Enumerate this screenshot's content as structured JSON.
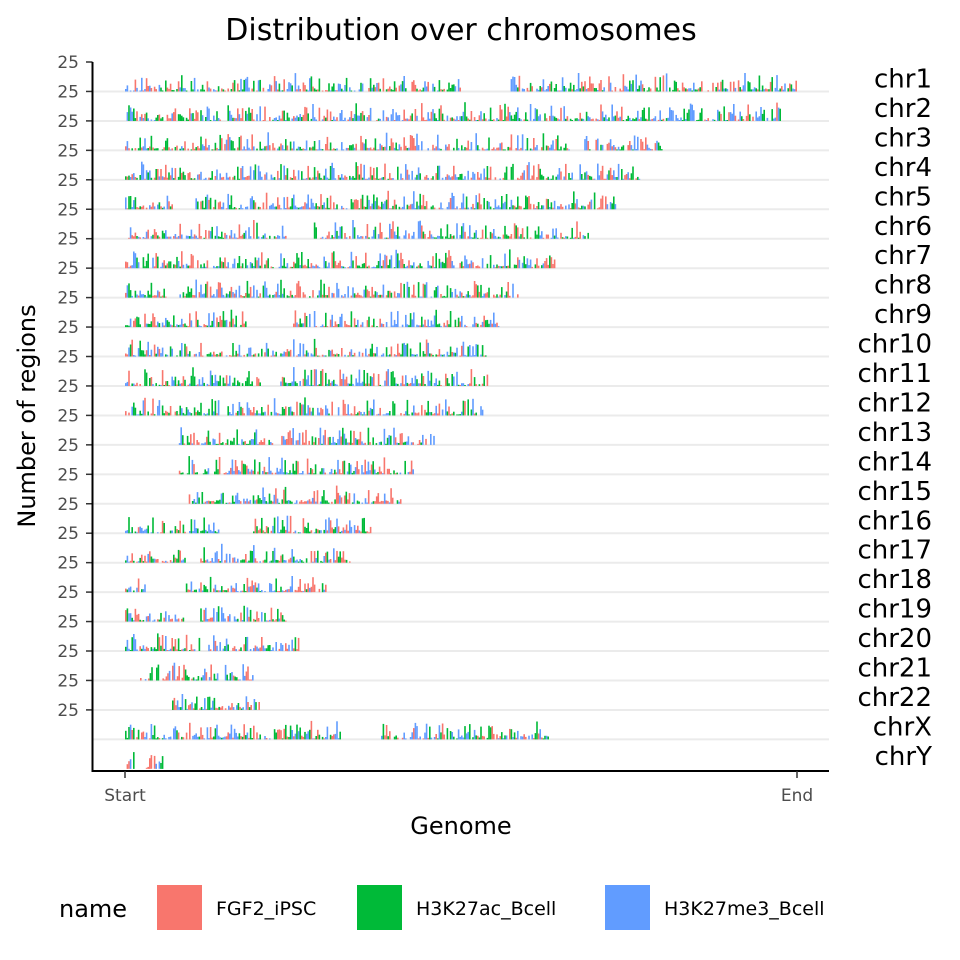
{
  "chart_data": {
    "type": "bar",
    "title": "Distribution over chromosomes",
    "xlabel": "Genome",
    "ylabel": "Number of regions",
    "x_ticks": [
      "Start",
      "End"
    ],
    "y_tick": "25",
    "ylim": [
      0,
      25
    ],
    "grid": "horizontal baselines only",
    "legend": {
      "title": "name",
      "position": "bottom",
      "entries": [
        {
          "name": "FGF2_iPSC",
          "color": "#F8766D"
        },
        {
          "name": "H3K27ac_Bcell",
          "color": "#00BA38"
        },
        {
          "name": "H3K27me3_Bcell",
          "color": "#619CFF"
        }
      ]
    },
    "chromosomes": [
      {
        "name": "chr1",
        "span": [
          0.0,
          1.0
        ],
        "gaps": [
          [
            0.5,
            0.57
          ]
        ]
      },
      {
        "name": "chr2",
        "span": [
          0.0,
          0.975
        ],
        "gaps": []
      },
      {
        "name": "chr3",
        "span": [
          0.0,
          0.8
        ],
        "gaps": [
          [
            0.66,
            0.68
          ]
        ]
      },
      {
        "name": "chr4",
        "span": [
          0.0,
          0.765
        ],
        "gaps": [
          [
            0.17,
            0.15
          ]
        ]
      },
      {
        "name": "chr5",
        "span": [
          0.0,
          0.73
        ],
        "gaps": [
          [
            0.07,
            0.1
          ]
        ]
      },
      {
        "name": "chr6",
        "span": [
          0.0,
          0.69
        ],
        "gaps": [
          [
            0.24,
            0.28
          ]
        ]
      },
      {
        "name": "chr7",
        "span": [
          0.0,
          0.64
        ],
        "gaps": [
          [
            0.09,
            0.07
          ]
        ]
      },
      {
        "name": "chr8",
        "span": [
          0.0,
          0.585
        ],
        "gaps": [
          [
            0.06,
            0.08
          ]
        ]
      },
      {
        "name": "chr9",
        "span": [
          0.0,
          0.555
        ],
        "gaps": [
          [
            0.18,
            0.25
          ]
        ]
      },
      {
        "name": "chr10",
        "span": [
          0.0,
          0.54
        ],
        "gaps": [
          [
            0.24,
            0.24
          ]
        ]
      },
      {
        "name": "chr11",
        "span": [
          0.0,
          0.54
        ],
        "gaps": [
          [
            0.2,
            0.23
          ]
        ]
      },
      {
        "name": "chr12",
        "span": [
          0.0,
          0.535
        ],
        "gaps": [
          [
            0.14,
            0.15
          ]
        ]
      },
      {
        "name": "chr13",
        "span": [
          0.08,
          0.46
        ],
        "gaps": [
          [
            0.22,
            0.23
          ]
        ]
      },
      {
        "name": "chr14",
        "span": [
          0.08,
          0.43
        ],
        "gaps": []
      },
      {
        "name": "chr15",
        "span": [
          0.09,
          0.41
        ],
        "gaps": []
      },
      {
        "name": "chr16",
        "span": [
          0.0,
          0.365
        ],
        "gaps": [
          [
            0.14,
            0.19
          ]
        ]
      },
      {
        "name": "chr17",
        "span": [
          0.0,
          0.335
        ],
        "gaps": [
          [
            0.09,
            0.11
          ]
        ]
      },
      {
        "name": "chr18",
        "span": [
          0.0,
          0.3
        ],
        "gaps": [
          [
            0.03,
            0.09
          ]
        ]
      },
      {
        "name": "chr19",
        "span": [
          0.0,
          0.24
        ],
        "gaps": [
          [
            0.09,
            0.11
          ]
        ]
      },
      {
        "name": "chr20",
        "span": [
          0.0,
          0.26
        ],
        "gaps": [
          [
            0.11,
            0.12
          ]
        ]
      },
      {
        "name": "chr21",
        "span": [
          0.02,
          0.19
        ],
        "gaps": []
      },
      {
        "name": "chr22",
        "span": [
          0.07,
          0.2
        ],
        "gaps": []
      },
      {
        "name": "chrX",
        "span": [
          0.0,
          0.63
        ],
        "gaps": [
          [
            0.32,
            0.38
          ]
        ]
      },
      {
        "name": "chrY",
        "span": [
          0.0,
          0.055
        ],
        "gaps": [
          [
            0.015,
            0.03
          ]
        ]
      }
    ]
  }
}
